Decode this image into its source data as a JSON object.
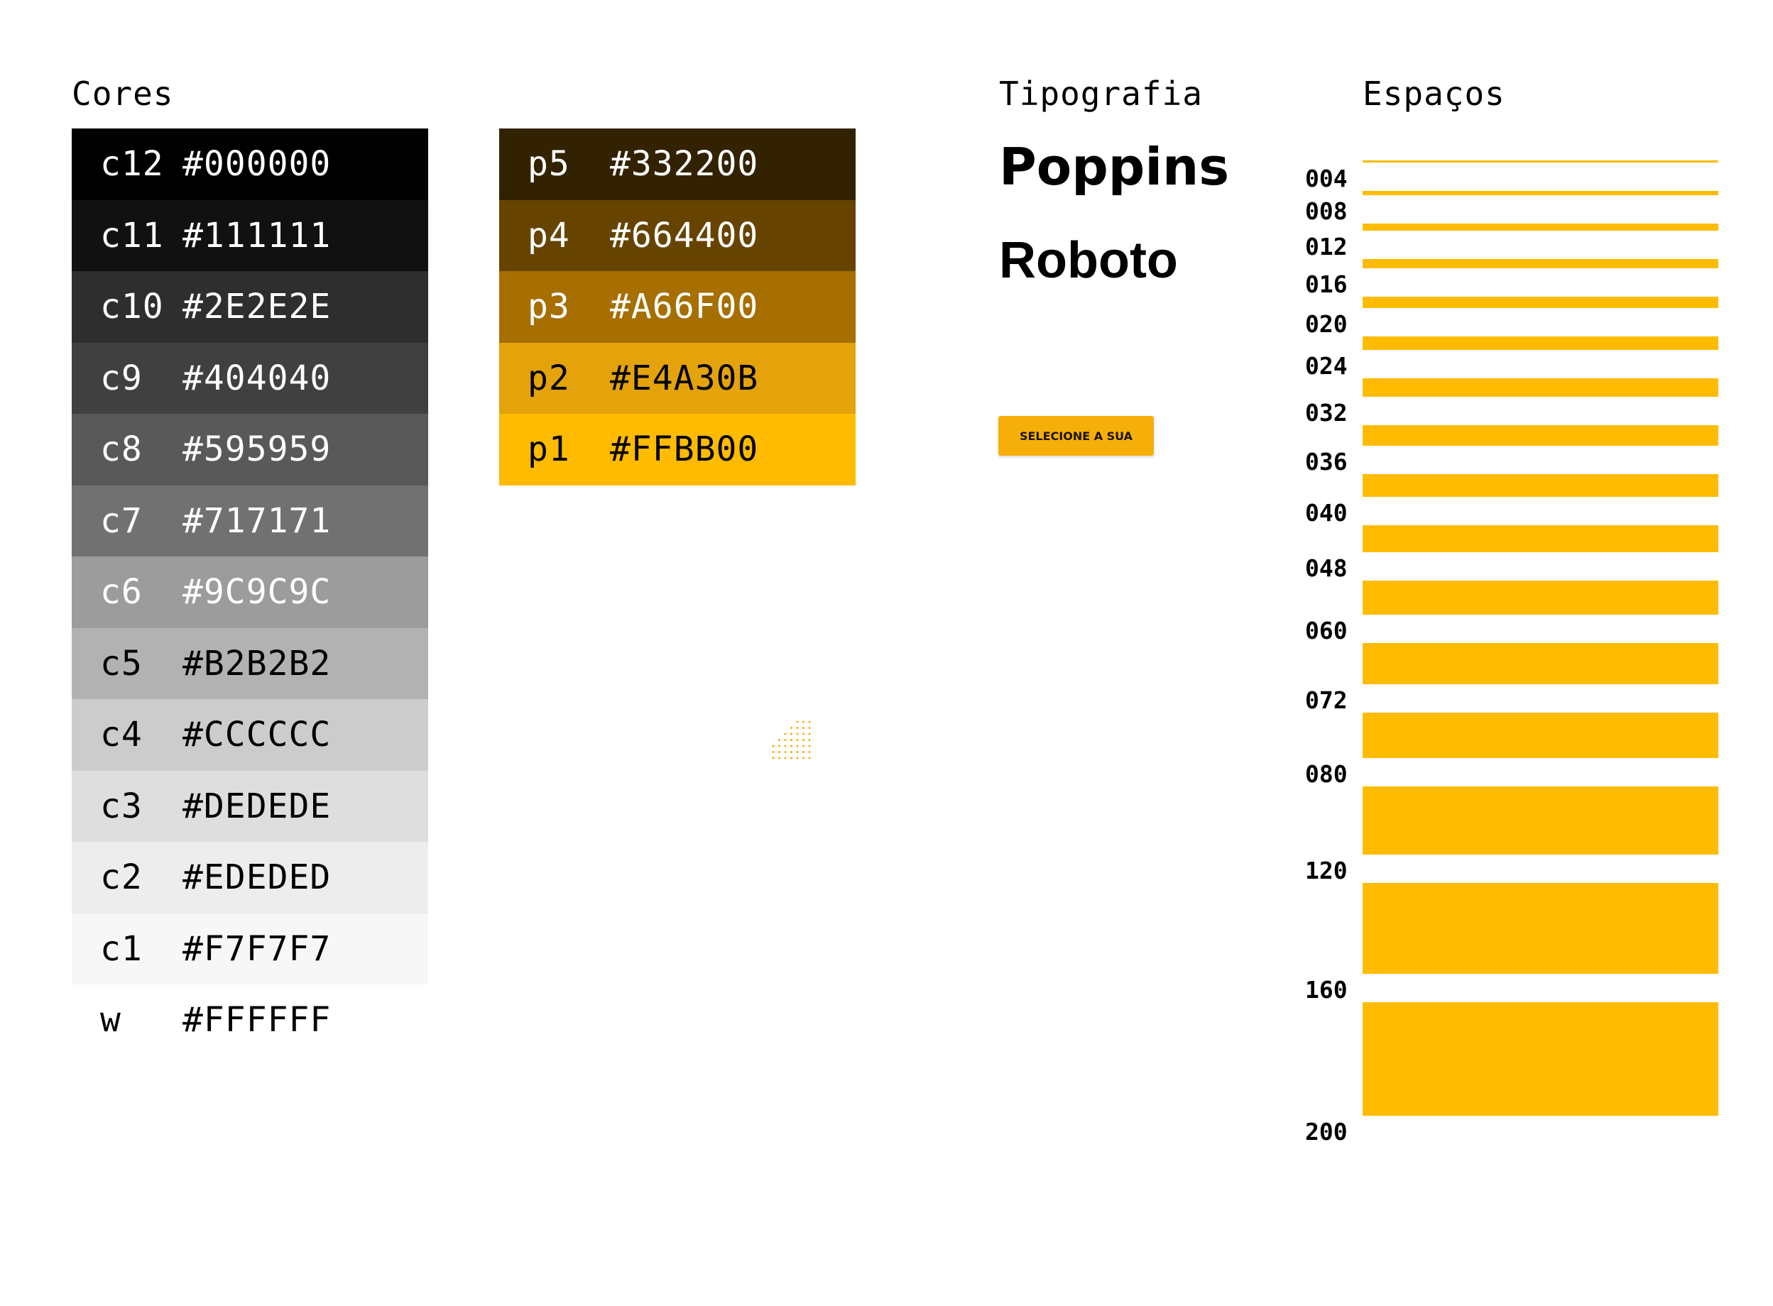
{
  "sections": {
    "colors_title": "Cores",
    "typography_title": "Tipografia",
    "spacing_title": "Espaços"
  },
  "grays": [
    {
      "name": "c12",
      "hex": "#000000",
      "text_color": "#FFFFFF"
    },
    {
      "name": "c11",
      "hex": "#111111",
      "text_color": "#FFFFFF"
    },
    {
      "name": "c10",
      "hex": "#2E2E2E",
      "text_color": "#FFFFFF"
    },
    {
      "name": "c9",
      "hex": "#404040",
      "text_color": "#FFFFFF"
    },
    {
      "name": "c8",
      "hex": "#595959",
      "text_color": "#FFFFFF"
    },
    {
      "name": "c7",
      "hex": "#717171",
      "text_color": "#FFFFFF"
    },
    {
      "name": "c6",
      "hex": "#9C9C9C",
      "text_color": "#FFFFFF"
    },
    {
      "name": "c5",
      "hex": "#B2B2B2",
      "text_color": "#000000"
    },
    {
      "name": "c4",
      "hex": "#CCCCCC",
      "text_color": "#000000"
    },
    {
      "name": "c3",
      "hex": "#DEDEDE",
      "text_color": "#000000"
    },
    {
      "name": "c2",
      "hex": "#EDEDED",
      "text_color": "#000000"
    },
    {
      "name": "c1",
      "hex": "#F7F7F7",
      "text_color": "#000000"
    },
    {
      "name": "w",
      "hex": "#FFFFFF",
      "text_color": "#000000"
    }
  ],
  "primaries": [
    {
      "name": "p5",
      "hex": "#332200",
      "text_color": "#FFFFFF"
    },
    {
      "name": "p4",
      "hex": "#664400",
      "text_color": "#FFFFFF"
    },
    {
      "name": "p3",
      "hex": "#A66F00",
      "text_color": "#FFFFFF"
    },
    {
      "name": "p2",
      "hex": "#E4A30B",
      "text_color": "#000000"
    },
    {
      "name": "p1",
      "hex": "#FFBB00",
      "text_color": "#000000"
    }
  ],
  "typography": {
    "fonts": [
      "Poppins",
      "Roboto"
    ],
    "button_label": "SELECIONE A SUA"
  },
  "colors": {
    "accent": "#FFBB00",
    "button": "#F6AE09",
    "dots": "#F6AE09"
  },
  "spacing": [
    "004",
    "008",
    "012",
    "016",
    "020",
    "024",
    "032",
    "036",
    "040",
    "048",
    "060",
    "072",
    "080",
    "120",
    "160",
    "200"
  ]
}
